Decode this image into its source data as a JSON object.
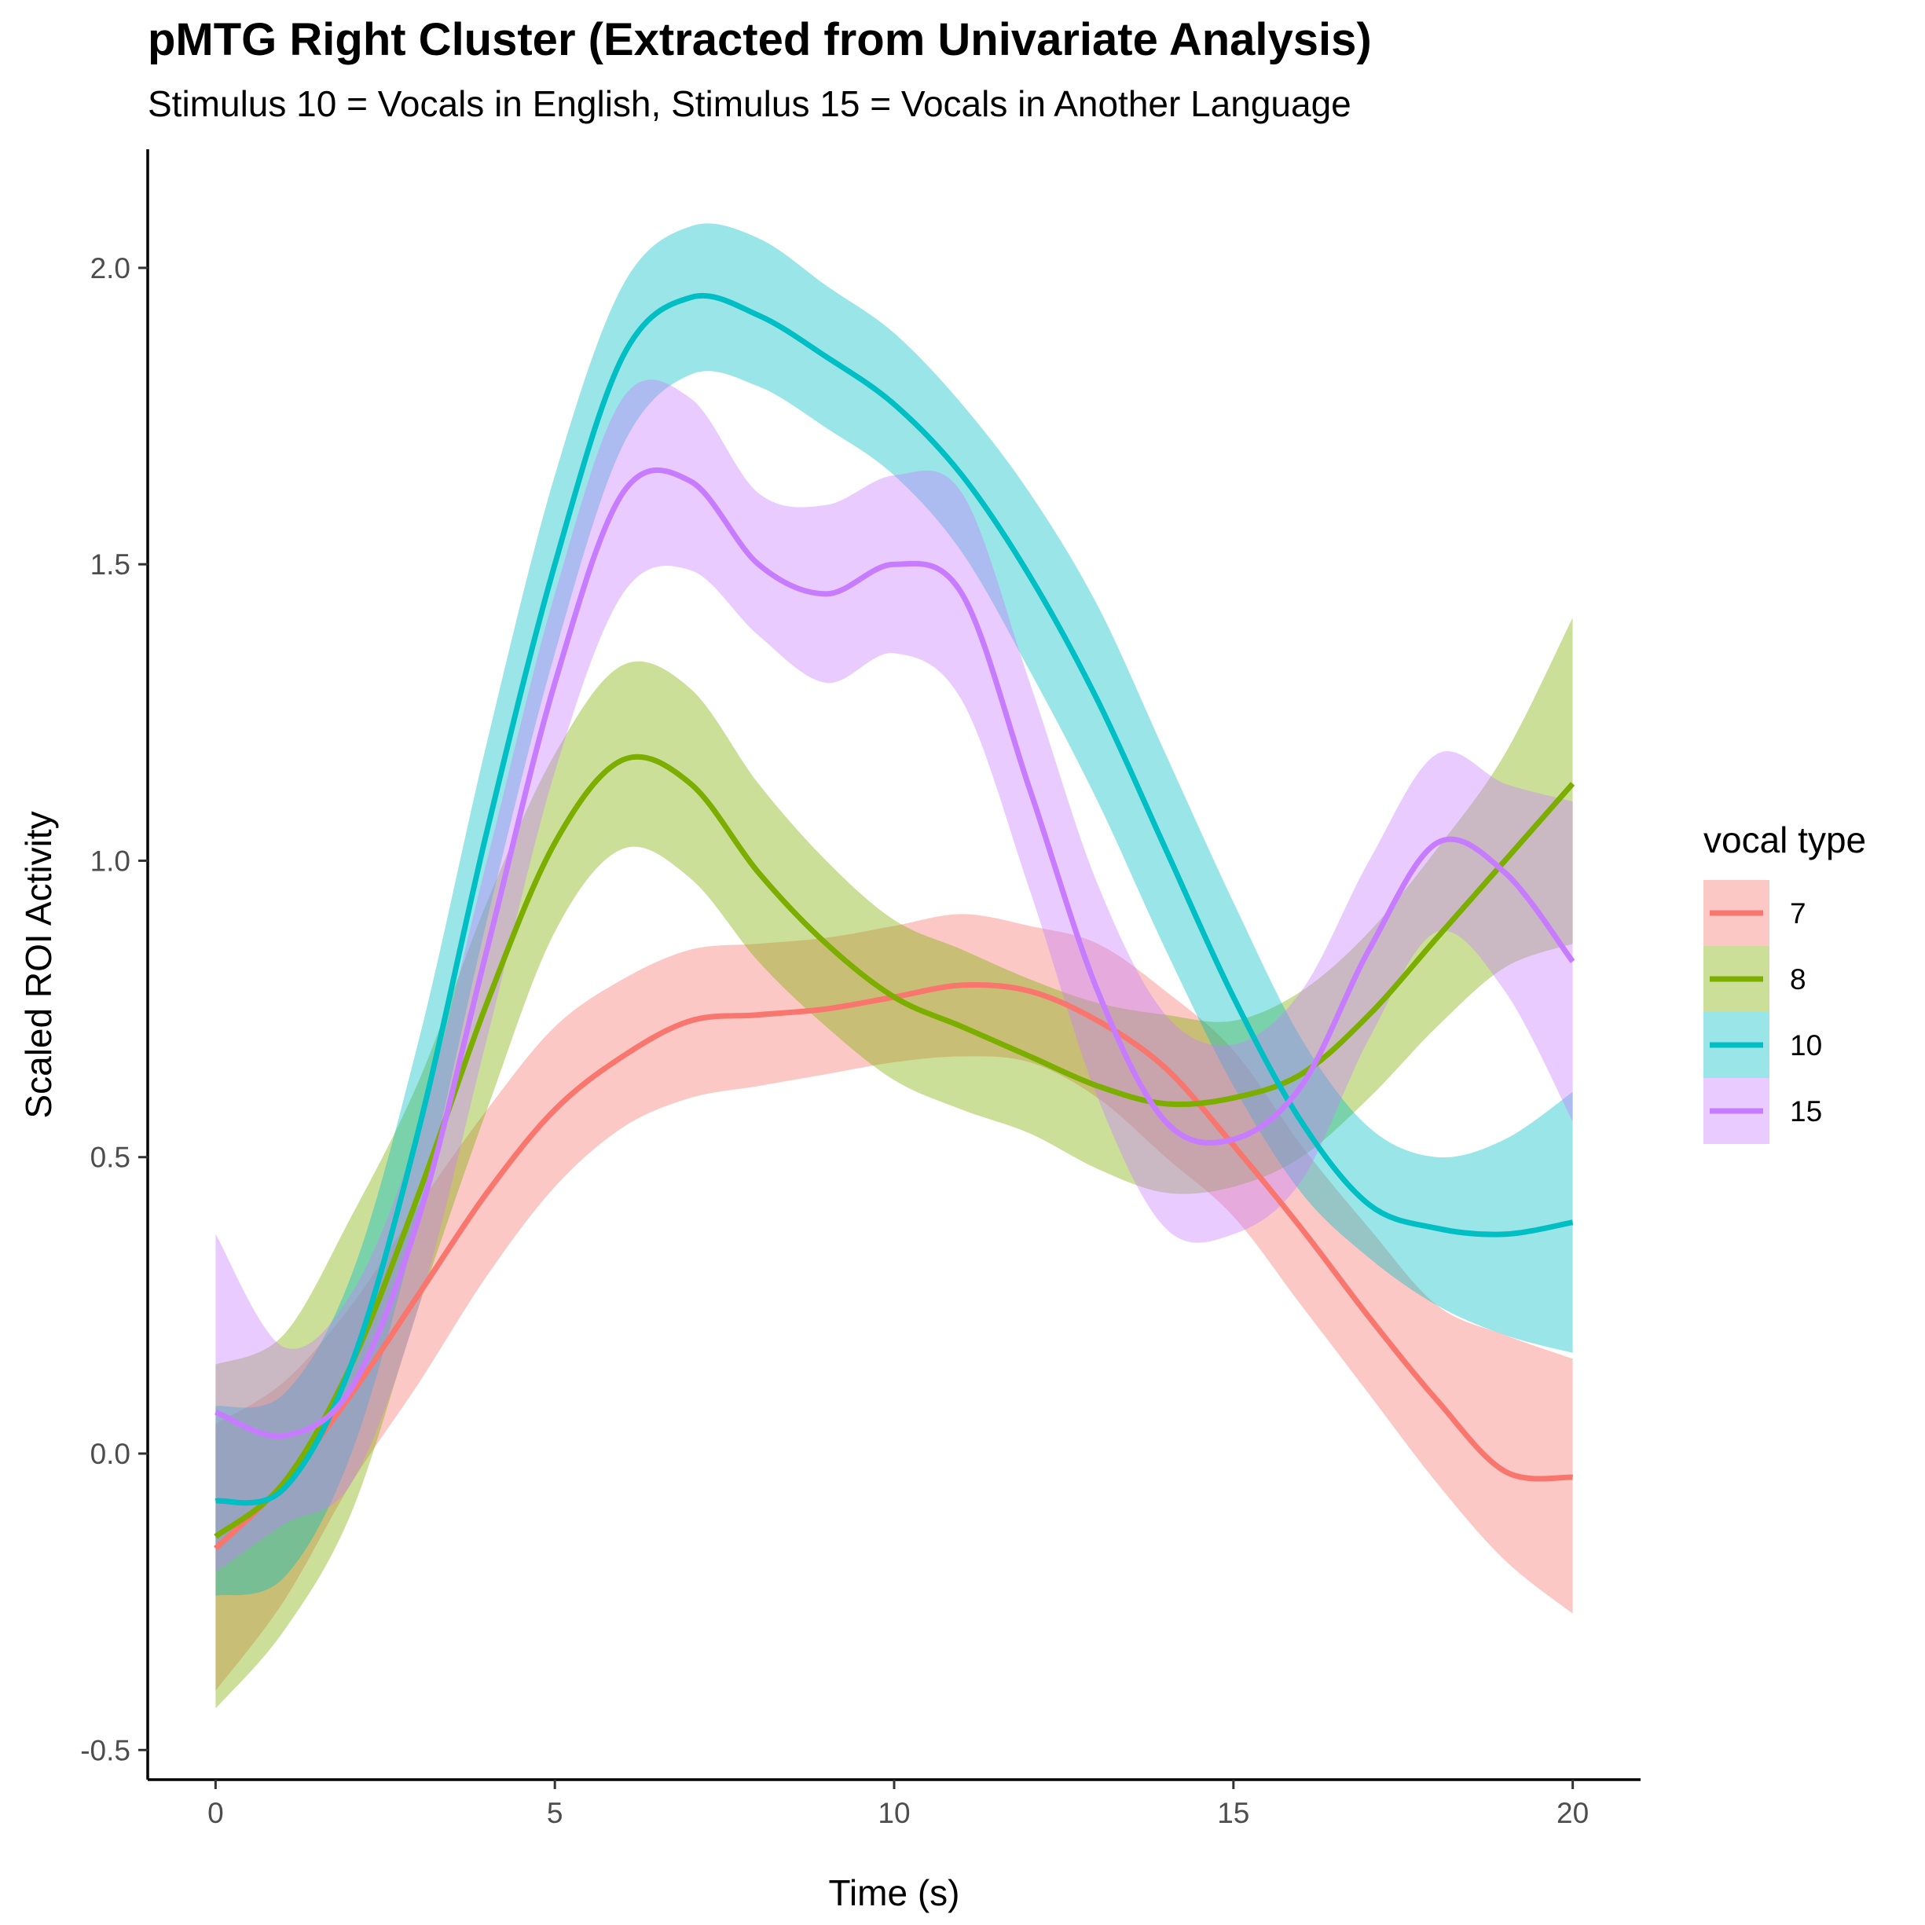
{
  "chart_data": {
    "type": "line",
    "title": "pMTG Right Cluster (Extracted from Univariate Analysis)",
    "subtitle": "Stimulus 10 = Vocals in English, Stimulus 15 = Vocals in Another Language",
    "xlabel": "Time (s)",
    "ylabel": "Scaled ROI Activity",
    "xlim": [
      -1,
      21
    ],
    "ylim": [
      -0.55,
      2.2
    ],
    "xticks": [
      0,
      5,
      10,
      15,
      20
    ],
    "xtick_labels": [
      "0",
      "5",
      "10",
      "15",
      "20"
    ],
    "yticks": [
      -0.5,
      0.0,
      0.5,
      1.0,
      1.5,
      2.0
    ],
    "ytick_labels": [
      "-0.5",
      "0.0",
      "0.5",
      "1.0",
      "1.5",
      "2.0"
    ],
    "grid": false,
    "legend": {
      "title": "vocal type",
      "position": "right"
    },
    "x": [
      0,
      1,
      2,
      3,
      4,
      5,
      6,
      7,
      8,
      9,
      10,
      11,
      12,
      13,
      14,
      15,
      16,
      17,
      18,
      19,
      20
    ],
    "series": [
      {
        "name": "7",
        "color": "#F8766D",
        "values": [
          -0.16,
          -0.05,
          0.1,
          0.27,
          0.44,
          0.58,
          0.67,
          0.73,
          0.74,
          0.75,
          0.77,
          0.79,
          0.78,
          0.73,
          0.65,
          0.52,
          0.38,
          0.23,
          0.09,
          -0.03,
          -0.04
        ],
        "lower": [
          -0.4,
          -0.25,
          -0.05,
          0.12,
          0.3,
          0.45,
          0.55,
          0.6,
          0.62,
          0.64,
          0.66,
          0.67,
          0.66,
          0.6,
          0.5,
          0.4,
          0.25,
          0.1,
          -0.05,
          -0.18,
          -0.27
        ],
        "upper": [
          0.05,
          0.12,
          0.25,
          0.42,
          0.58,
          0.72,
          0.8,
          0.85,
          0.86,
          0.87,
          0.89,
          0.91,
          0.89,
          0.86,
          0.78,
          0.68,
          0.52,
          0.38,
          0.25,
          0.2,
          0.16
        ]
      },
      {
        "name": "8",
        "color": "#7CAE00",
        "values": [
          -0.14,
          -0.05,
          0.15,
          0.44,
          0.76,
          1.03,
          1.17,
          1.13,
          0.98,
          0.86,
          0.77,
          0.72,
          0.67,
          0.62,
          0.59,
          0.6,
          0.64,
          0.74,
          0.87,
          1.0,
          1.13
        ],
        "lower": [
          -0.43,
          -0.3,
          -0.1,
          0.25,
          0.58,
          0.88,
          1.02,
          0.97,
          0.83,
          0.72,
          0.63,
          0.58,
          0.54,
          0.48,
          0.44,
          0.45,
          0.5,
          0.6,
          0.72,
          0.82,
          0.86
        ],
        "upper": [
          0.15,
          0.2,
          0.4,
          0.63,
          0.93,
          1.18,
          1.33,
          1.29,
          1.13,
          1.0,
          0.9,
          0.85,
          0.8,
          0.76,
          0.74,
          0.73,
          0.78,
          0.88,
          1.02,
          1.18,
          1.41
        ]
      },
      {
        "name": "10",
        "color": "#00BFC4",
        "values": [
          -0.08,
          -0.06,
          0.15,
          0.55,
          1.05,
          1.5,
          1.85,
          1.95,
          1.92,
          1.85,
          1.77,
          1.65,
          1.48,
          1.27,
          1.02,
          0.77,
          0.56,
          0.42,
          0.38,
          0.37,
          0.39
        ],
        "lower": [
          -0.24,
          -0.21,
          0.0,
          0.4,
          0.9,
          1.35,
          1.7,
          1.82,
          1.8,
          1.73,
          1.65,
          1.52,
          1.32,
          1.1,
          0.85,
          0.62,
          0.44,
          0.33,
          0.25,
          0.2,
          0.17
        ],
        "upper": [
          0.08,
          0.1,
          0.3,
          0.7,
          1.2,
          1.65,
          1.97,
          2.07,
          2.05,
          1.97,
          1.89,
          1.77,
          1.62,
          1.43,
          1.18,
          0.93,
          0.7,
          0.55,
          0.5,
          0.53,
          0.61
        ]
      },
      {
        "name": "15",
        "color": "#C77CFF",
        "values": [
          0.07,
          0.03,
          0.11,
          0.4,
          0.85,
          1.3,
          1.62,
          1.64,
          1.5,
          1.45,
          1.5,
          1.45,
          1.12,
          0.78,
          0.56,
          0.53,
          0.62,
          0.85,
          1.03,
          0.98,
          0.83
        ],
        "lower": [
          -0.2,
          -0.12,
          -0.05,
          0.25,
          0.7,
          1.15,
          1.45,
          1.49,
          1.38,
          1.3,
          1.35,
          1.27,
          0.95,
          0.6,
          0.38,
          0.37,
          0.46,
          0.7,
          0.88,
          0.78,
          0.56
        ],
        "upper": [
          0.37,
          0.18,
          0.27,
          0.55,
          1.0,
          1.45,
          1.78,
          1.78,
          1.62,
          1.6,
          1.65,
          1.62,
          1.3,
          0.96,
          0.74,
          0.69,
          0.78,
          1.0,
          1.18,
          1.13,
          1.1
        ]
      }
    ]
  }
}
